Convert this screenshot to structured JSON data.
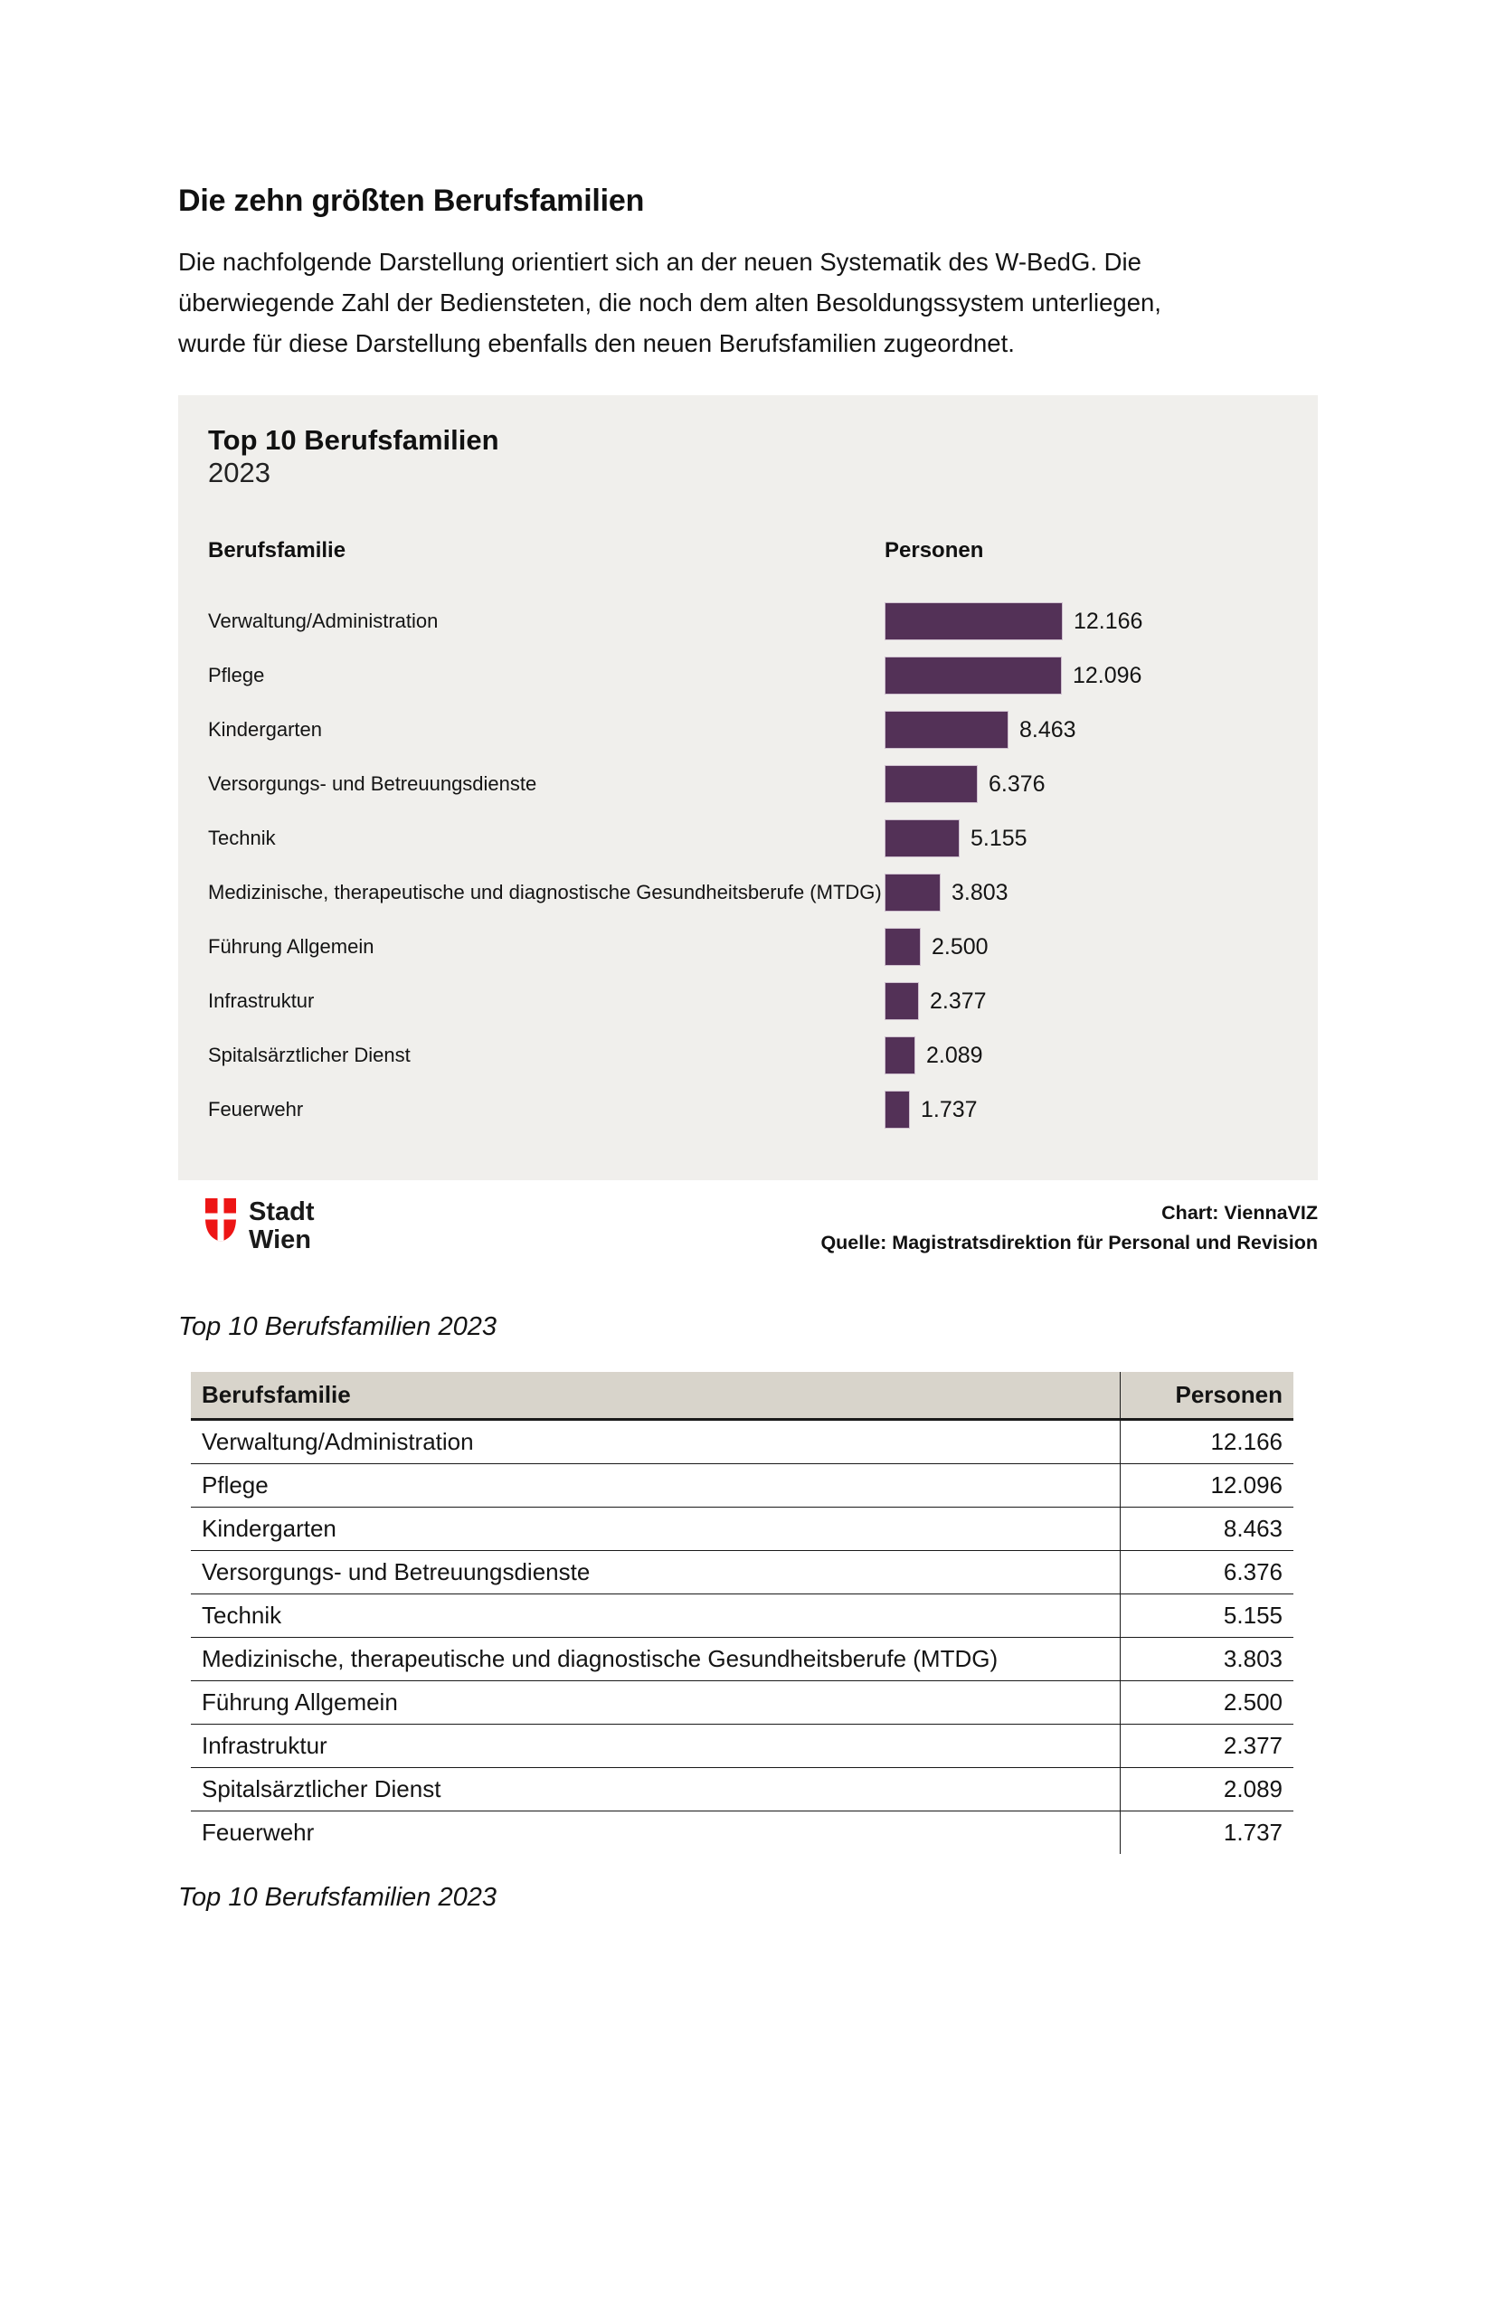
{
  "page": {
    "title": "Die zehn größten Berufsfamilien",
    "intro": "Die nachfolgende Darstellung orientiert sich an der neuen Systematik des W-BedG. Die\nüberwiegende Zahl der Bediensteten, die noch dem alten Besoldungssystem unterliegen,\nwurde für diese Darstellung ebenfalls den neuen Berufsfamilien zugeordnet.",
    "figure_caption": "Top 10 Berufsfamilien 2023",
    "table_caption": "Top 10 Berufsfamilien 2023"
  },
  "figure": {
    "title": "Top 10 Berufsfamilien",
    "subtitle": "2023",
    "column_label_left": "Berufsfamilie",
    "column_label_right": "Personen",
    "credit_chart": "Chart: ViennaVIZ",
    "credit_source": "Quelle: Magistratsdirektion für Personal und Revision",
    "logo": {
      "line1": "Stadt",
      "line2": "Wien"
    },
    "colors": {
      "bar": "#533157",
      "card_background": "#f0efec",
      "logo_red": "#ed1515",
      "table_header_background": "#d8d4cb"
    }
  },
  "chart_data": {
    "type": "bar",
    "orientation": "horizontal",
    "title": "Top 10 Berufsfamilien",
    "subtitle": "2023",
    "xlabel": "Personen",
    "ylabel": "Berufsfamilie",
    "legend": false,
    "grid": false,
    "categories": [
      "Verwaltung/Administration",
      "Pflege",
      "Kindergarten",
      "Versorgungs- und Betreuungsdienste",
      "Technik",
      "Medizinische, therapeutische und diagnostische Gesundheitsberufe (MTDG)",
      "Führung Allgemein",
      "Infrastruktur",
      "Spitalsärztlicher Dienst",
      "Feuerwehr"
    ],
    "values": [
      12166,
      12096,
      8463,
      6376,
      5155,
      3803,
      2500,
      2377,
      2089,
      1737
    ],
    "value_labels": [
      "12.166",
      "12.096",
      "8.463",
      "6.376",
      "5.155",
      "3.803",
      "2.500",
      "2.377",
      "2.089",
      "1.737"
    ]
  },
  "table": {
    "headers": [
      "Berufsfamilie",
      "Personen"
    ],
    "rows": [
      [
        "Verwaltung/Administration",
        "12.166"
      ],
      [
        "Pflege",
        "12.096"
      ],
      [
        "Kindergarten",
        "8.463"
      ],
      [
        "Versorgungs- und Betreuungsdienste",
        "6.376"
      ],
      [
        "Technik",
        "5.155"
      ],
      [
        "Medizinische, therapeutische und diagnostische Gesundheitsberufe (MTDG)",
        "3.803"
      ],
      [
        "Führung Allgemein",
        "2.500"
      ],
      [
        "Infrastruktur",
        "2.377"
      ],
      [
        "Spitalsärztlicher Dienst",
        "2.089"
      ],
      [
        "Feuerwehr",
        "1.737"
      ]
    ]
  }
}
